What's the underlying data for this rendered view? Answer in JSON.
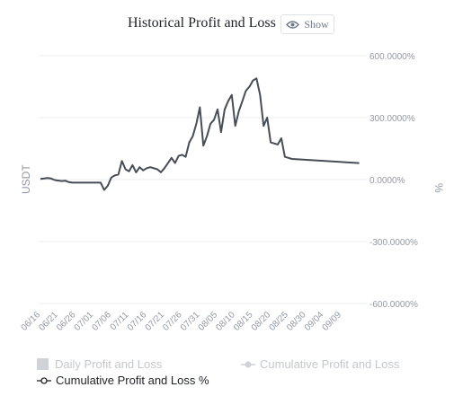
{
  "header": {
    "title": "Historical Profit and Loss",
    "show_label": "Show",
    "show_icon": "eye-icon"
  },
  "legend": [
    {
      "label": "Daily Profit and Loss",
      "icon": "square-swatch-icon",
      "active": false
    },
    {
      "label": "Cumulative Profit and Loss",
      "icon": "dot-line-swatch-icon",
      "active": false
    },
    {
      "label": "Cumulative Profit and Loss %",
      "icon": "hollow-dot-line-swatch-icon",
      "active": true
    }
  ],
  "colors": {
    "line": "#474d57",
    "grid": "#eaecef",
    "axis_text": "#929aa5"
  },
  "chart_data": {
    "type": "line",
    "title": "Historical Profit and Loss",
    "xlabel": "",
    "ylabel_left": "USDT",
    "ylabel_right": "%",
    "x_tick_labels": [
      "06/16",
      "06/21",
      "06/26",
      "07/01",
      "07/06",
      "07/11",
      "07/16",
      "07/21",
      "07/26",
      "07/31",
      "08/05",
      "08/10",
      "08/15",
      "08/20",
      "08/25",
      "08/30",
      "09/04",
      "09/09"
    ],
    "y_tick_labels": [
      "600.0000%",
      "300.0000%",
      "0.0000%",
      "-300.0000%",
      "-600.0000%"
    ],
    "y_ticks": [
      600,
      300,
      0,
      -300,
      -600
    ],
    "ylim": [
      -600,
      600
    ],
    "grid": true,
    "series": [
      {
        "name": "Cumulative Profit and Loss %",
        "x": [
          "06/16",
          "06/18",
          "06/19",
          "06/20",
          "06/22",
          "06/23",
          "06/24",
          "06/25",
          "06/26",
          "06/27",
          "06/28",
          "07/03",
          "07/04",
          "07/05",
          "07/06",
          "07/07",
          "07/08",
          "07/09",
          "07/10",
          "07/11",
          "07/12",
          "07/13",
          "07/14",
          "07/15",
          "07/16",
          "07/17",
          "07/19",
          "07/20",
          "07/21",
          "07/23",
          "07/24",
          "07/25",
          "07/26",
          "07/27",
          "07/28",
          "07/29",
          "07/30",
          "07/31",
          "08/01",
          "08/02",
          "08/03",
          "08/04",
          "08/05",
          "08/06",
          "08/07",
          "08/08",
          "08/09",
          "08/10",
          "08/11",
          "08/12",
          "08/13",
          "08/14",
          "08/15",
          "08/16",
          "08/17",
          "08/18",
          "08/19",
          "08/20",
          "08/22",
          "08/23",
          "08/24",
          "08/25",
          "08/26",
          "09/14"
        ],
        "values": [
          3,
          8,
          5,
          -2,
          -7,
          -5,
          -12,
          -15,
          -15,
          -15,
          -15,
          -15,
          -50,
          -30,
          10,
          20,
          25,
          90,
          50,
          40,
          70,
          35,
          60,
          45,
          55,
          60,
          50,
          35,
          55,
          105,
          80,
          115,
          120,
          110,
          180,
          210,
          270,
          350,
          165,
          210,
          270,
          290,
          340,
          230,
          340,
          380,
          410,
          260,
          330,
          380,
          430,
          450,
          480,
          490,
          410,
          260,
          300,
          180,
          170,
          200,
          110,
          105,
          100,
          80
        ]
      }
    ]
  }
}
